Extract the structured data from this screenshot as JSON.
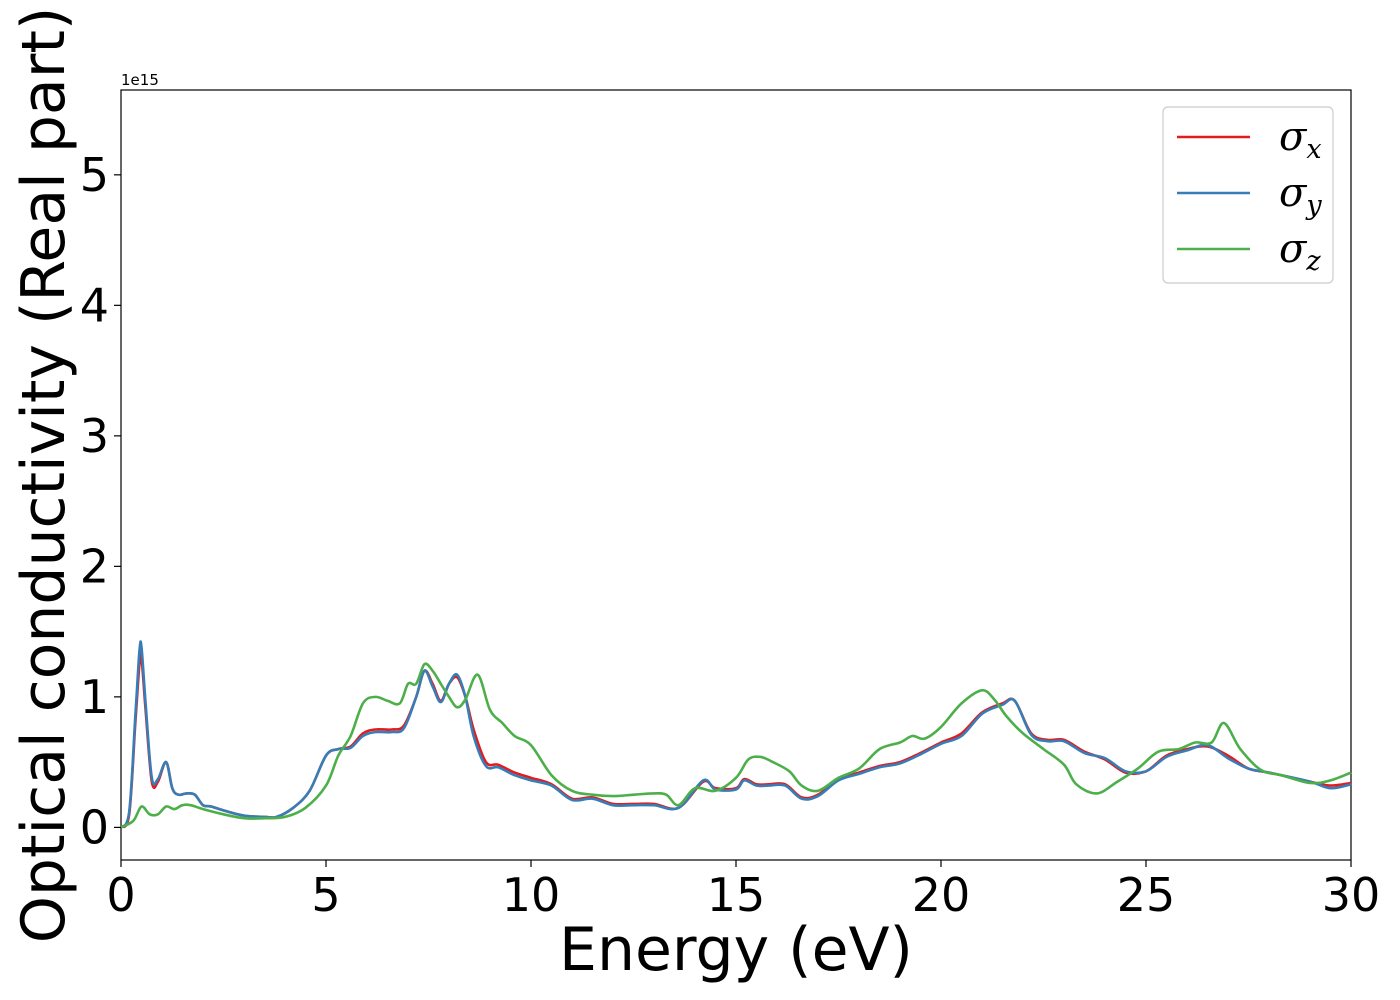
{
  "chart_data": {
    "type": "line",
    "xlabel": "Energy (eV)",
    "ylabel": "Optical conductivity (Real part)",
    "y_multiplier": "1e15",
    "xlim": [
      0,
      30
    ],
    "ylim": [
      -0.25,
      5.65
    ],
    "x_ticks": [
      "0",
      "5",
      "10",
      "15",
      "20",
      "25",
      "30"
    ],
    "y_ticks": [
      "0",
      "1",
      "2",
      "3",
      "4",
      "5"
    ],
    "grid": false,
    "legend_position": "top-right",
    "series": [
      {
        "name": "σx",
        "symbol": "σ",
        "subscript": "x",
        "color": "#e41a1c",
        "x": [
          0,
          0.2,
          0.35,
          0.45,
          0.5,
          0.6,
          0.75,
          0.9,
          1.1,
          1.25,
          1.4,
          1.6,
          1.8,
          2.0,
          2.2,
          2.5,
          3.0,
          3.5,
          3.8,
          4.2,
          4.6,
          5.0,
          5.3,
          5.6,
          5.9,
          6.2,
          6.6,
          6.9,
          7.2,
          7.4,
          7.6,
          7.8,
          8.0,
          8.2,
          8.4,
          8.6,
          8.9,
          9.2,
          9.6,
          10.0,
          10.5,
          11.0,
          11.5,
          12.0,
          12.5,
          13.0,
          13.6,
          14.2,
          14.5,
          15.0,
          15.2,
          15.5,
          15.8,
          16.2,
          16.6,
          17.0,
          17.5,
          18.0,
          18.5,
          19.0,
          19.5,
          20.0,
          20.5,
          21.0,
          21.5,
          21.8,
          22.2,
          22.6,
          23.0,
          23.5,
          24.0,
          24.5,
          25.0,
          25.5,
          26.0,
          26.5,
          27.0,
          27.5,
          28.0,
          29.0,
          29.5,
          30.0
        ],
        "values": [
          0,
          0.1,
          0.8,
          1.25,
          1.3,
          0.9,
          0.35,
          0.35,
          0.5,
          0.3,
          0.25,
          0.26,
          0.25,
          0.17,
          0.16,
          0.13,
          0.09,
          0.08,
          0.08,
          0.15,
          0.28,
          0.55,
          0.6,
          0.62,
          0.72,
          0.75,
          0.75,
          0.78,
          1.0,
          1.2,
          1.1,
          0.97,
          1.1,
          1.15,
          1.0,
          0.75,
          0.5,
          0.48,
          0.42,
          0.38,
          0.33,
          0.22,
          0.23,
          0.18,
          0.18,
          0.18,
          0.15,
          0.35,
          0.3,
          0.3,
          0.37,
          0.33,
          0.33,
          0.33,
          0.23,
          0.25,
          0.37,
          0.42,
          0.47,
          0.5,
          0.57,
          0.65,
          0.72,
          0.88,
          0.95,
          0.97,
          0.72,
          0.67,
          0.67,
          0.58,
          0.52,
          0.42,
          0.43,
          0.55,
          0.6,
          0.62,
          0.55,
          0.45,
          0.42,
          0.35,
          0.32,
          0.34
        ]
      },
      {
        "name": "σy",
        "symbol": "σ",
        "subscript": "y",
        "color": "#377eb8",
        "x": [
          0,
          0.2,
          0.35,
          0.45,
          0.5,
          0.6,
          0.75,
          0.9,
          1.1,
          1.25,
          1.4,
          1.6,
          1.8,
          2.0,
          2.2,
          2.5,
          3.0,
          3.5,
          3.8,
          4.2,
          4.6,
          5.0,
          5.3,
          5.6,
          5.9,
          6.2,
          6.6,
          6.9,
          7.2,
          7.4,
          7.6,
          7.8,
          8.0,
          8.2,
          8.4,
          8.6,
          8.9,
          9.2,
          9.6,
          10.0,
          10.5,
          11.0,
          11.5,
          12.0,
          12.5,
          13.0,
          13.6,
          14.2,
          14.5,
          15.0,
          15.2,
          15.5,
          15.8,
          16.2,
          16.6,
          17.0,
          17.5,
          18.0,
          18.5,
          19.0,
          19.5,
          20.0,
          20.5,
          21.0,
          21.5,
          21.8,
          22.2,
          22.6,
          23.0,
          23.5,
          24.0,
          24.5,
          25.0,
          25.5,
          26.0,
          26.5,
          27.0,
          27.5,
          28.0,
          29.0,
          29.5,
          30.0
        ],
        "values": [
          0,
          0.12,
          0.85,
          1.35,
          1.38,
          0.95,
          0.38,
          0.37,
          0.5,
          0.3,
          0.25,
          0.26,
          0.25,
          0.17,
          0.16,
          0.13,
          0.09,
          0.08,
          0.08,
          0.15,
          0.28,
          0.55,
          0.6,
          0.61,
          0.7,
          0.73,
          0.73,
          0.76,
          1.0,
          1.2,
          1.08,
          0.96,
          1.1,
          1.17,
          1.0,
          0.7,
          0.47,
          0.46,
          0.4,
          0.36,
          0.32,
          0.21,
          0.22,
          0.17,
          0.17,
          0.17,
          0.15,
          0.36,
          0.29,
          0.29,
          0.36,
          0.32,
          0.32,
          0.32,
          0.22,
          0.24,
          0.36,
          0.41,
          0.46,
          0.49,
          0.56,
          0.64,
          0.7,
          0.87,
          0.94,
          0.97,
          0.71,
          0.66,
          0.66,
          0.57,
          0.53,
          0.43,
          0.43,
          0.54,
          0.59,
          0.63,
          0.53,
          0.45,
          0.42,
          0.35,
          0.3,
          0.33
        ]
      },
      {
        "name": "σz",
        "symbol": "σ",
        "subscript": "z",
        "color": "#4daf4a",
        "x": [
          0,
          0.3,
          0.5,
          0.7,
          0.9,
          1.1,
          1.3,
          1.5,
          1.7,
          2.0,
          2.5,
          3.0,
          3.5,
          4.0,
          4.5,
          5.0,
          5.3,
          5.6,
          5.9,
          6.2,
          6.5,
          6.8,
          7.0,
          7.2,
          7.4,
          7.6,
          7.8,
          8.0,
          8.2,
          8.4,
          8.7,
          9.0,
          9.3,
          9.6,
          10.0,
          10.5,
          11.0,
          11.5,
          12.0,
          12.5,
          13.0,
          13.3,
          13.6,
          14.0,
          14.5,
          15.0,
          15.3,
          15.6,
          15.9,
          16.3,
          16.6,
          17.0,
          17.5,
          18.0,
          18.5,
          19.0,
          19.3,
          19.6,
          20.0,
          20.5,
          21.0,
          21.3,
          21.6,
          22.0,
          22.5,
          23.0,
          23.3,
          23.8,
          24.3,
          24.8,
          25.3,
          25.8,
          26.2,
          26.6,
          26.9,
          27.3,
          27.8,
          28.3,
          29.0,
          29.5,
          30.0
        ],
        "values": [
          0,
          0.05,
          0.16,
          0.1,
          0.1,
          0.16,
          0.14,
          0.17,
          0.17,
          0.14,
          0.1,
          0.07,
          0.07,
          0.08,
          0.15,
          0.32,
          0.55,
          0.7,
          0.95,
          1.0,
          0.97,
          0.95,
          1.1,
          1.1,
          1.25,
          1.2,
          1.1,
          1.0,
          0.92,
          0.98,
          1.17,
          0.9,
          0.8,
          0.7,
          0.63,
          0.4,
          0.28,
          0.25,
          0.24,
          0.25,
          0.26,
          0.25,
          0.17,
          0.3,
          0.28,
          0.38,
          0.52,
          0.54,
          0.5,
          0.43,
          0.32,
          0.28,
          0.38,
          0.45,
          0.6,
          0.65,
          0.7,
          0.68,
          0.77,
          0.95,
          1.05,
          0.98,
          0.85,
          0.72,
          0.6,
          0.48,
          0.33,
          0.26,
          0.35,
          0.45,
          0.58,
          0.6,
          0.65,
          0.65,
          0.8,
          0.6,
          0.44,
          0.4,
          0.34,
          0.36,
          0.42
        ]
      }
    ]
  }
}
